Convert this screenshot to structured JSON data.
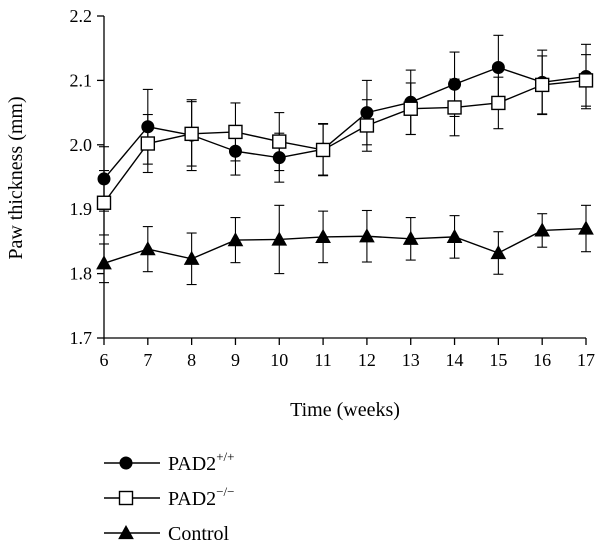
{
  "chart_data": {
    "type": "line",
    "xlabel": "Time (weeks)",
    "ylabel": "Paw thickness (mm)",
    "xlim": [
      6,
      17
    ],
    "ylim": [
      1.7,
      2.2
    ],
    "x_ticks": [
      "6",
      "7",
      "8",
      "9",
      "10",
      "11",
      "12",
      "13",
      "14",
      "15",
      "16",
      "17"
    ],
    "y_ticks": [
      "1.7",
      "1.8",
      "1.9",
      "2.0",
      "2.1",
      "2.2"
    ],
    "x": [
      6,
      7,
      8,
      9,
      10,
      11,
      12,
      13,
      14,
      15,
      16,
      17
    ],
    "grid": false,
    "legend_position": "bottom-left",
    "series": [
      {
        "base": "PAD2",
        "sup": "+/+",
        "marker": "filled-circle",
        "values": [
          1.947,
          2.028,
          2.015,
          1.99,
          1.98,
          1.993,
          2.05,
          2.066,
          2.094,
          2.12,
          2.097,
          2.106
        ],
        "errors": [
          0.05,
          0.058,
          0.055,
          0.037,
          0.038,
          0.04,
          0.05,
          0.05,
          0.05,
          0.05,
          0.05,
          0.05
        ]
      },
      {
        "base": "PAD2",
        "sup": "−/−",
        "marker": "open-square",
        "values": [
          1.91,
          2.002,
          2.017,
          2.02,
          2.005,
          1.992,
          2.03,
          2.056,
          2.058,
          2.065,
          2.093,
          2.1
        ],
        "errors": [
          0.05,
          0.045,
          0.05,
          0.045,
          0.045,
          0.04,
          0.04,
          0.04,
          0.044,
          0.04,
          0.045,
          0.04
        ]
      },
      {
        "base": "Control",
        "sup": "",
        "marker": "filled-triangle",
        "values": [
          1.816,
          1.838,
          1.823,
          1.852,
          1.853,
          1.857,
          1.858,
          1.854,
          1.857,
          1.832,
          1.867,
          1.87
        ],
        "errors": [
          0.03,
          0.035,
          0.04,
          0.035,
          0.053,
          0.04,
          0.04,
          0.033,
          0.033,
          0.033,
          0.026,
          0.036
        ]
      }
    ]
  }
}
